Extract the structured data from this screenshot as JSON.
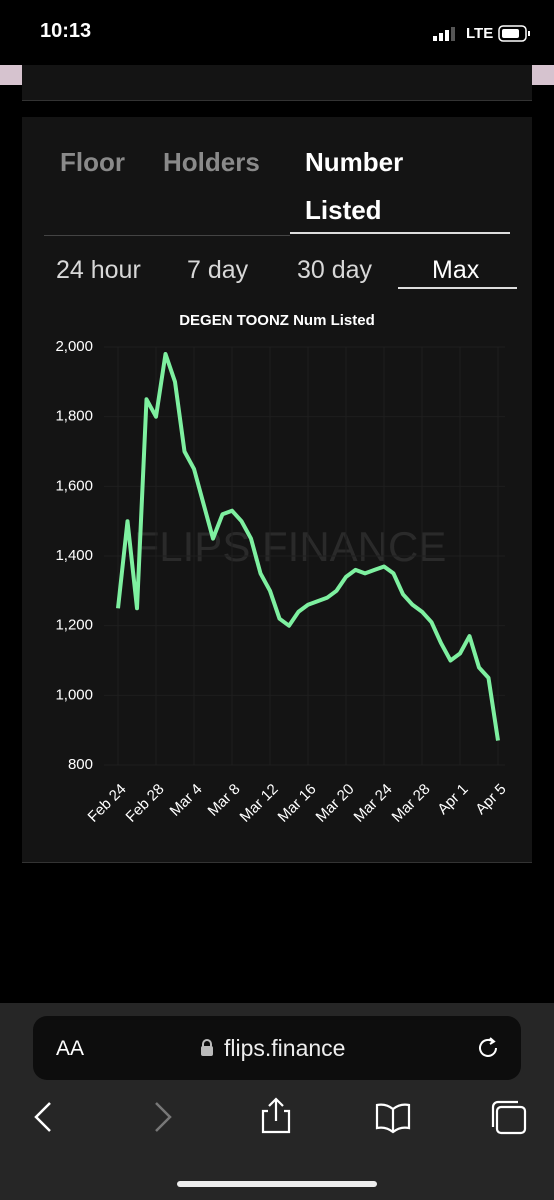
{
  "status_bar": {
    "time": "10:13",
    "network": "LTE"
  },
  "tabs": [
    "Floor",
    "Holders",
    "Number Listed"
  ],
  "ranges": [
    "24 hour",
    "7 day",
    "30 day",
    "Max"
  ],
  "watermark": "FLIPS.FINANCE",
  "browser": {
    "text_size": "AA",
    "url": "flips.finance"
  },
  "chart_data": {
    "type": "line",
    "title": "DEGEN TOONZ Num Listed",
    "categories": [
      "Feb 24",
      null,
      null,
      null,
      "Feb 28",
      null,
      null,
      null,
      "Mar 4",
      null,
      null,
      null,
      "Mar 8",
      null,
      null,
      null,
      "Mar 12",
      null,
      null,
      null,
      "Mar 16",
      null,
      null,
      null,
      "Mar 20",
      null,
      null,
      null,
      "Mar 24",
      null,
      null,
      null,
      "Mar 28",
      null,
      null,
      null,
      "Apr 1",
      null,
      null,
      null,
      "Apr 5"
    ],
    "values": [
      1250,
      1500,
      1250,
      1850,
      1800,
      1980,
      1900,
      1700,
      1650,
      1550,
      1450,
      1520,
      1530,
      1500,
      1450,
      1350,
      1300,
      1220,
      1200,
      1240,
      1260,
      1270,
      1280,
      1300,
      1340,
      1360,
      1350,
      1360,
      1370,
      1350,
      1290,
      1260,
      1240,
      1210,
      1150,
      1100,
      1120,
      1170,
      1080,
      1050,
      870
    ],
    "color": "#7ef0a0",
    "ylim": [
      800,
      2000
    ],
    "yticks": [
      800,
      {
        "value": 1000,
        "label": "1,000"
      },
      {
        "value": 1200,
        "label": "1,200"
      },
      {
        "value": 1400,
        "label": "1,400"
      },
      {
        "value": 1600,
        "label": "1,600"
      },
      {
        "value": 1800,
        "label": "1,800"
      },
      {
        "value": 2000,
        "label": "2,000"
      }
    ],
    "grid": true
  }
}
